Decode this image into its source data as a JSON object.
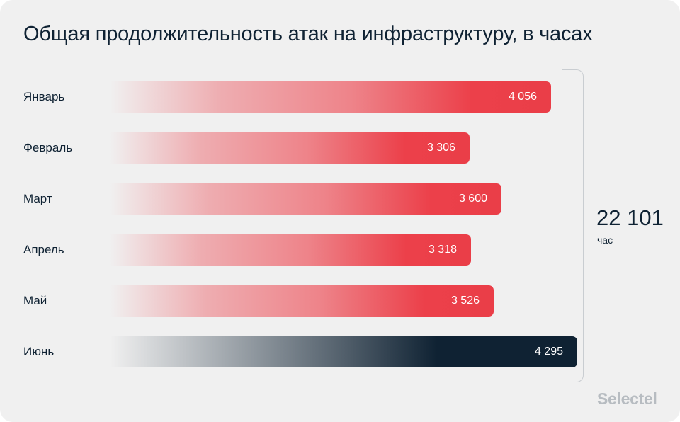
{
  "title": "Общая продолжительность атак на инфраструктуру, в часах",
  "total": {
    "value": "22 101",
    "unit": "час"
  },
  "logo": "Selectel",
  "colors": {
    "bar_red": "#ea3e48",
    "bar_dark": "#0f2233",
    "background": "#f0f0f0",
    "text": "#0f2233"
  },
  "chart_data": {
    "type": "bar",
    "orientation": "horizontal",
    "title": "Общая продолжительность атак на инфраструктуру, в часах",
    "categories": [
      "Январь",
      "Февраль",
      "Март",
      "Апрель",
      "Май",
      "Июнь"
    ],
    "values": [
      4056,
      3306,
      3600,
      3318,
      3526,
      4295
    ],
    "value_labels": [
      "4 056",
      "3 306",
      "3 600",
      "3 318",
      "3 526",
      "4 295"
    ],
    "highlight_index": 5,
    "grid": false,
    "legend": "none",
    "xlim": [
      0,
      4295
    ]
  }
}
